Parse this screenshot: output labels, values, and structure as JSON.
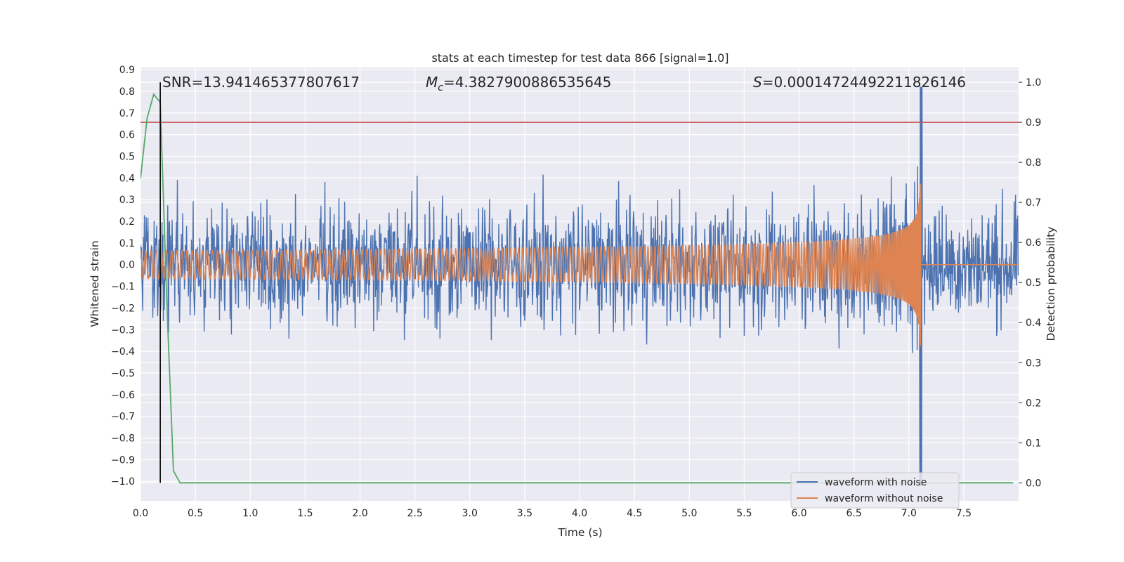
{
  "chart_data": {
    "type": "line",
    "title": "stats at each timestep for test data 866 [signal=1.0]",
    "xlabel": "Time (s)",
    "ylabel": "Whitened strain",
    "ylabel_right": "Detection probability",
    "xlim": [
      0.0,
      8.0
    ],
    "ylim": [
      -1.09,
      0.91
    ],
    "ylim_right": [
      -0.045,
      1.037
    ],
    "xticks": [
      "0.0",
      "0.5",
      "1.0",
      "1.5",
      "2.0",
      "2.5",
      "3.0",
      "3.5",
      "4.0",
      "4.5",
      "5.0",
      "5.5",
      "6.0",
      "6.5",
      "7.0",
      "7.5"
    ],
    "yticks": [
      "0.9",
      "0.8",
      "0.7",
      "0.6",
      "0.5",
      "0.4",
      "0.3",
      "0.2",
      "0.1",
      "0.0",
      "−0.1",
      "−0.2",
      "−0.3",
      "−0.4",
      "−0.5",
      "−0.6",
      "−0.7",
      "−0.8",
      "−0.9",
      "−1.0"
    ],
    "yticks_right": [
      "1.0",
      "0.9",
      "0.8",
      "0.7",
      "0.6",
      "0.5",
      "0.4",
      "0.3",
      "0.2",
      "0.1",
      "0.0"
    ],
    "grid": true,
    "annotations": {
      "snr": "SNR=13.941465377807617",
      "mc_symbol": "M",
      "mc_sub": "c",
      "mc_value": "=4.3827900886535645",
      "s_symbol": "S",
      "s_value": "=0.00014724492211826146"
    },
    "threshold_probability": 0.9,
    "threshold_color": "#c44e52",
    "marker_time": 0.18,
    "series": [
      {
        "name": "waveform with noise",
        "color": "#4c72b0",
        "kind": "noisy-chirp",
        "t_start": 0.0,
        "t_end": 8.0,
        "noise_amplitude": 0.3,
        "merger_time": 7.11
      },
      {
        "name": "waveform without noise",
        "color": "#dd8452",
        "kind": "chirp",
        "t_start": 0.0,
        "t_end": 8.0,
        "amplitude_start": 0.065,
        "amplitude_peak": 0.8,
        "merger_time": 7.11
      },
      {
        "name": "detection probability",
        "color": "#55a868",
        "axis": "right",
        "x": [
          0.0,
          0.06,
          0.12,
          0.18,
          0.24,
          0.3,
          0.36,
          0.42,
          0.5,
          1.0,
          2.0,
          3.0,
          4.0,
          5.0,
          6.0,
          7.0,
          7.5,
          7.95
        ],
        "values": [
          0.76,
          0.91,
          0.97,
          0.95,
          0.45,
          0.03,
          0.0,
          0.0,
          0.0,
          0.0,
          0.0,
          0.0,
          0.0,
          0.0,
          0.0,
          0.0,
          0.0,
          0.0
        ]
      }
    ],
    "legend": {
      "position": "lower-right",
      "entries": [
        "waveform with noise",
        "waveform without noise"
      ]
    }
  }
}
